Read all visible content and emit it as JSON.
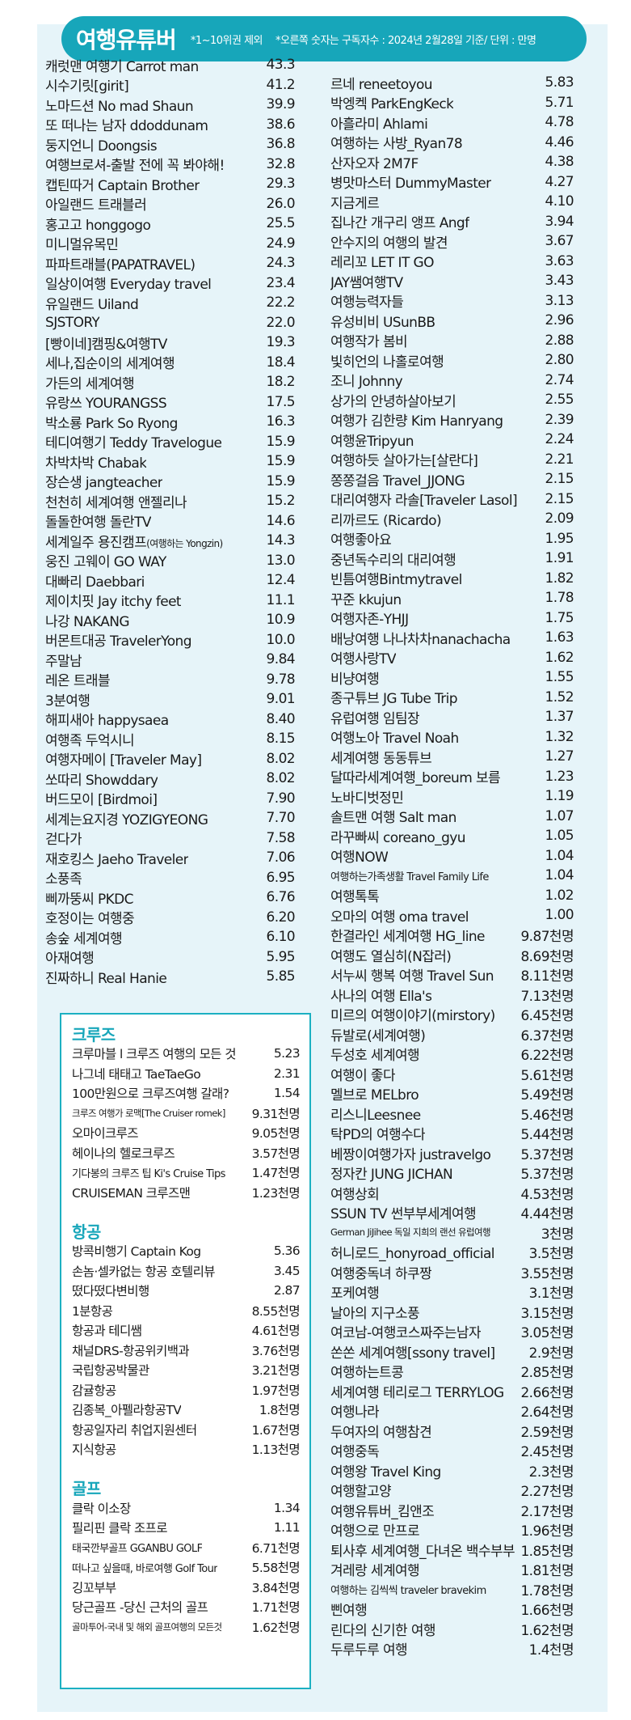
{
  "header": {
    "title": "여행유튜버",
    "note1": "*1~10위권 제외",
    "note2": "*오른쪽 숫자는 구독자수 : 2024년 2월28일 기준/ 단위 : 만명"
  },
  "left_list": [
    {
      "name": "캐럿맨 여행기 Carrot man",
      "value": "43.3"
    },
    {
      "name": "시수기릿[girit]",
      "value": "41.2"
    },
    {
      "name": "노마드션 No mad Shaun",
      "value": "39.9"
    },
    {
      "name": "또 떠나는 남자 ddoddunam",
      "value": "38.6"
    },
    {
      "name": "둥지언니 Doongsis",
      "value": "36.8"
    },
    {
      "name": "여행브로셔-출발 전에 꼭 봐야해!",
      "value": "32.8"
    },
    {
      "name": "캡틴따거 Captain Brother",
      "value": "29.3"
    },
    {
      "name": "아일랜드 트래블러",
      "value": "26.0"
    },
    {
      "name": "홍고고 honggogo",
      "value": "25.5"
    },
    {
      "name": "미니멀유목민",
      "value": "24.9"
    },
    {
      "name": "파파트래블(PAPATRAVEL)",
      "value": "24.3"
    },
    {
      "name": "일상이여행 Everyday travel",
      "value": "23.4"
    },
    {
      "name": "유일랜드 Uiland",
      "value": "22.2"
    },
    {
      "name": "SJSTORY",
      "value": "22.0"
    },
    {
      "name": "[빵이네]캠핑&여행TV",
      "value": "19.3"
    },
    {
      "name": "세나,집순이의 세계여행",
      "value": "18.4"
    },
    {
      "name": "가든의 세계여행",
      "value": "18.2"
    },
    {
      "name": "유랑쓰 YOURANGSS",
      "value": "17.5"
    },
    {
      "name": "박소룡 Park So Ryong",
      "value": "16.3"
    },
    {
      "name": "테디여행기 Teddy Travelogue",
      "value": "15.9"
    },
    {
      "name": "차박차박 Chabak",
      "value": "15.9"
    },
    {
      "name": "장슨생 jangteacher",
      "value": "15.9"
    },
    {
      "name": "천천히 세계여행 앤젤리나",
      "value": "15.2"
    },
    {
      "name": "돌돌한여행 돌란TV",
      "value": "14.6"
    },
    {
      "name": "세계일주 용진캠프",
      "name_small": "(여행하는 Yongzin)",
      "value": "14.3"
    },
    {
      "name": "웅진 고웨이 GO WAY",
      "value": "13.0"
    },
    {
      "name": "대빠리 Daebbari",
      "value": "12.4"
    },
    {
      "name": "제이치핏 Jay itchy feet",
      "value": "11.1"
    },
    {
      "name": "나강 NAKANG",
      "value": "10.9"
    },
    {
      "name": "버몬트대공 TravelerYong",
      "value": "10.0"
    },
    {
      "name": "주말남",
      "value": "9.84"
    },
    {
      "name": "레온 트래블",
      "value": "9.78"
    },
    {
      "name": "3분여행",
      "value": "9.01"
    },
    {
      "name": "해피새아 happysaea",
      "value": "8.40"
    },
    {
      "name": "여행족 두억시니",
      "value": "8.15"
    },
    {
      "name": "여행자메이 [Traveler May]",
      "value": "8.02"
    },
    {
      "name": "쏘따리 Showddary",
      "value": "8.02"
    },
    {
      "name": "버드모이 [Birdmoi]",
      "value": "7.90"
    },
    {
      "name": "세계는요지경 YOZIGYEONG",
      "value": "7.70"
    },
    {
      "name": "걷다가",
      "value": "7.58"
    },
    {
      "name": "재호킹스 Jaeho Traveler",
      "value": "7.06"
    },
    {
      "name": "소풍족",
      "value": "6.95"
    },
    {
      "name": "삐까뚱씨 PKDC",
      "value": "6.76"
    },
    {
      "name": "호정이는 여행중",
      "value": "6.20"
    },
    {
      "name": "송숲 세계여행",
      "value": "6.10"
    },
    {
      "name": "아재여행",
      "value": "5.95"
    },
    {
      "name": "진짜하니 Real Hanie",
      "value": "5.85"
    }
  ],
  "right_list": [
    {
      "name": "르네 reneetoyou",
      "value": "5.83"
    },
    {
      "name": "박엥켁 ParkEngKeck",
      "value": "5.71"
    },
    {
      "name": "아흘라미 Ahlami",
      "value": "4.78"
    },
    {
      "name": "여행하는 사방_Ryan78",
      "value": "4.46"
    },
    {
      "name": "산자오자 2M7F",
      "value": "4.38"
    },
    {
      "name": "병맛마스터 DummyMaster",
      "value": "4.27"
    },
    {
      "name": "지금게르",
      "value": "4.10"
    },
    {
      "name": "집나간 개구리 앵프 Angf",
      "value": "3.94"
    },
    {
      "name": "안수지의 여행의 발견",
      "value": "3.67"
    },
    {
      "name": "레리꼬 LET IT GO",
      "value": "3.63"
    },
    {
      "name": "JAY쌤여행TV",
      "value": "3.43"
    },
    {
      "name": "여행능력자들",
      "value": "3.13"
    },
    {
      "name": "유성비비 USunBB",
      "value": "2.96"
    },
    {
      "name": "여행작가 봄비",
      "value": "2.88"
    },
    {
      "name": "빛히언의 나홀로여행",
      "value": "2.80"
    },
    {
      "name": "조니 Johnny",
      "value": "2.74"
    },
    {
      "name": "상가의 안녕하살아보기",
      "value": "2.55"
    },
    {
      "name": "여행가 김한량 Kim Hanryang",
      "value": "2.39"
    },
    {
      "name": "여행윤Tripyun",
      "value": "2.24"
    },
    {
      "name": "여행하듯 살아가는[살란다]",
      "value": "2.21"
    },
    {
      "name": "쫑쫑걸음 Travel_JJONG",
      "value": "2.15"
    },
    {
      "name": "대리여행자 라솔[Traveler Lasol]",
      "value": "2.15"
    },
    {
      "name": "리까르도 (Ricardo)",
      "value": "2.09"
    },
    {
      "name": "여행좋아요",
      "value": "1.95"
    },
    {
      "name": "중년독수리의 대리여행",
      "value": "1.91"
    },
    {
      "name": "빈틈여행Bintmytravel",
      "value": "1.82"
    },
    {
      "name": "꾸준 kkujun",
      "value": "1.78"
    },
    {
      "name": "여행자존-YHJJ",
      "value": "1.75"
    },
    {
      "name": "배낭여행 나나차차nanachacha",
      "value": "1.63"
    },
    {
      "name": "여행사랑TV",
      "value": "1.62"
    },
    {
      "name": "비냥여행",
      "value": "1.55"
    },
    {
      "name": "종구튜브 JG Tube Trip",
      "value": "1.52"
    },
    {
      "name": "유럽여행 임팀장",
      "value": "1.37"
    },
    {
      "name": "여행노아 Travel Noah",
      "value": "1.32"
    },
    {
      "name": "세계여행 동동튜브",
      "value": "1.27"
    },
    {
      "name": "달따라세계여행_boreum 보름",
      "value": "1.23"
    },
    {
      "name": "노바디벗정민",
      "value": "1.19"
    },
    {
      "name": "솔트맨 여행 Salt man",
      "value": "1.07"
    },
    {
      "name": "라꾸빠씨 coreano_gyu",
      "value": "1.05"
    },
    {
      "name": "여행NOW",
      "value": "1.04"
    },
    {
      "name": "여행하는가족생활 Travel Family Life",
      "value": "1.04",
      "size": "sm"
    },
    {
      "name": "여행톡톡",
      "value": "1.02"
    },
    {
      "name": "오마의 여행 oma travel",
      "value": "1.00"
    },
    {
      "name": "한결라인 세계여행 HG_line",
      "value": "9.87천명"
    },
    {
      "name": "여행도 열심히(N잡러)",
      "value": "8.69천명"
    },
    {
      "name": "서누씨 행복 여행 Travel Sun",
      "value": "8.11천명"
    },
    {
      "name": "사나의 여행 Ella's",
      "value": "7.13천명"
    },
    {
      "name": "미르의 여행이야기(mirstory)",
      "value": "6.45천명"
    },
    {
      "name": "듀발로(세계여행)",
      "value": "6.37천명"
    },
    {
      "name": "두성호 세계여행",
      "value": "6.22천명"
    },
    {
      "name": "여행이 좋다",
      "value": "5.61천명"
    },
    {
      "name": "멜브로 MELbro",
      "value": "5.49천명"
    },
    {
      "name": "리스니Leesnee",
      "value": "5.46천명"
    },
    {
      "name": "탁PD의 여행수다",
      "value": "5.44천명"
    },
    {
      "name": "베짱이여행가자 justravelgo",
      "value": "5.37천명"
    },
    {
      "name": "정자칸 JUNG JICHAN",
      "value": "5.37천명"
    },
    {
      "name": "여행상회",
      "value": "4.53천명"
    },
    {
      "name": "SSUN TV 썬부부세계여행",
      "value": "4.44천명"
    },
    {
      "name": "German JiJihee 독일 지희의 랜선 유럽여행",
      "value": "3천명",
      "size": "xs"
    },
    {
      "name": "허니로드_honyroad_official",
      "value": "3.5천명"
    },
    {
      "name": "여행중독녀 하쿠짱",
      "value": "3.55천명"
    },
    {
      "name": "포케여행",
      "value": "3.1천명"
    },
    {
      "name": "날아의 지구소풍",
      "value": "3.15천명"
    },
    {
      "name": "여코남-여행코스짜주는남자",
      "value": "3.05천명"
    },
    {
      "name": "쏜쏜 세계여행[ssony travel]",
      "value": "2.9천명"
    },
    {
      "name": "여행하는트콩",
      "value": "2.85천명"
    },
    {
      "name": "세계여행 테리로그 TERRYLOG",
      "value": "2.66천명"
    },
    {
      "name": "여행나라",
      "value": "2.64천명"
    },
    {
      "name": "두여자의 여행참견",
      "value": "2.59천명"
    },
    {
      "name": "여행중독",
      "value": "2.45천명"
    },
    {
      "name": "여행왕 Travel King",
      "value": "2.3천명"
    },
    {
      "name": "여행할고양",
      "value": "2.27천명"
    },
    {
      "name": "여행유튜버_킴앤조",
      "value": "2.17천명"
    },
    {
      "name": "여행으로 만프로",
      "value": "1.96천명"
    },
    {
      "name": "퇴사후 세계여행_다녀온 백수부부",
      "value": "1.85천명"
    },
    {
      "name": "겨레랑 세계여행",
      "value": "1.81천명"
    },
    {
      "name": "여행하는 김씩씩 traveler bravekim",
      "value": "1.78천명",
      "size": "sm"
    },
    {
      "name": "삔여행",
      "value": "1.66천명"
    },
    {
      "name": "린다의 신기한 여행",
      "value": "1.62천명"
    },
    {
      "name": "두루두루 여행",
      "value": "1.4천명"
    }
  ],
  "cruise": {
    "title": "크루즈",
    "items": [
      {
        "name": "크루마블 l 크루즈 여행의 모든 것",
        "value": "5.23"
      },
      {
        "name": "나그네 태태고 TaeTaeGo",
        "value": "2.31"
      },
      {
        "name": "100만원으로 크루즈여행 갈래?",
        "value": "1.54"
      },
      {
        "name": "크루즈 여행가 로맥[The Cruiser romek]",
        "value": "9.31천명",
        "size": "xs"
      },
      {
        "name": "오마이크루즈",
        "value": "9.05천명"
      },
      {
        "name": "헤이나의 헬로크루즈",
        "value": "3.57천명"
      },
      {
        "name": "기다봉의 크루즈 팁 Ki's Cruise Tips",
        "value": "1.47천명",
        "size": "sm"
      },
      {
        "name": "CRUISEMAN 크루즈맨",
        "value": "1.23천명"
      }
    ]
  },
  "aviation": {
    "title": "항공",
    "items": [
      {
        "name": "방콕비행기 Captain Kog",
        "value": "5.36"
      },
      {
        "name": "손놈·셀카없는 항공 호텔리뷰",
        "value": "3.45"
      },
      {
        "name": "떴다떴다변비행",
        "value": "2.87"
      },
      {
        "name": "1분항공",
        "value": "8.55천명"
      },
      {
        "name": "항공과 테디쌤",
        "value": "4.61천명"
      },
      {
        "name": "채널DRS-항공위키백과",
        "value": "3.76천명"
      },
      {
        "name": "국립항공박물관",
        "value": "3.21천명"
      },
      {
        "name": "감귤항공",
        "value": "1.97천명"
      },
      {
        "name": "김종복_아펠라항공TV",
        "value": "1.8천명"
      },
      {
        "name": "항공일자리 취업지원센터",
        "value": "1.67천명"
      },
      {
        "name": "지식항공",
        "value": "1.13천명"
      }
    ]
  },
  "golf": {
    "title": "골프",
    "items": [
      {
        "name": "클락 이소장",
        "value": "1.34"
      },
      {
        "name": "필리핀 클락 조프로",
        "value": "1.11"
      },
      {
        "name": "태국깐부골프 GGANBU GOLF",
        "value": "6.71천명",
        "size": "sm"
      },
      {
        "name": "떠나고 싶을때, 바로여행 Golf Tour",
        "value": "5.58천명",
        "size": "sm"
      },
      {
        "name": "깅꼬부부",
        "value": "3.84천명"
      },
      {
        "name": "당근골프 -당신 근처의 골프",
        "value": "1.71천명"
      },
      {
        "name": "골마투어-국내 및 해외 골프여행의 모든것",
        "value": "1.62천명",
        "size": "xs"
      }
    ]
  }
}
